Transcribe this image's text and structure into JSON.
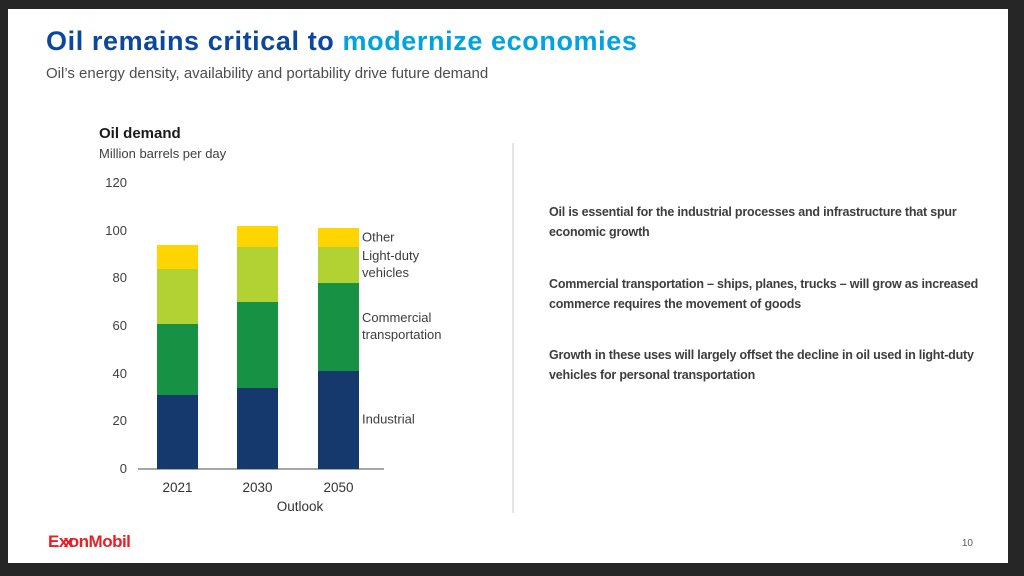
{
  "header": {
    "title_dark": "Oil remains critical to ",
    "title_light": "modernize economies",
    "title_dark_color": "#0c479e",
    "title_light_color": "#00a3e0",
    "subtitle": "Oil’s energy density, availability and portability drive future demand"
  },
  "chart_data": {
    "type": "bar",
    "stacked": true,
    "title": "Oil demand",
    "units_label": "Million barrels per day",
    "xlabel": "Outlook",
    "categories": [
      "2021",
      "2030",
      "2050"
    ],
    "series": [
      {
        "name": "Industrial",
        "color": "#16396d",
        "values": [
          31,
          34,
          41
        ]
      },
      {
        "name": "Commercial transportation",
        "color": "#179144",
        "values": [
          30,
          36,
          37
        ]
      },
      {
        "name": "Light-duty vehicles",
        "color": "#b2d234",
        "values": [
          23,
          23,
          15
        ]
      },
      {
        "name": "Other",
        "color": "#ffd500",
        "values": [
          10,
          9,
          8
        ]
      }
    ],
    "totals": [
      94,
      102,
      101
    ],
    "ylim": [
      0,
      120
    ],
    "yticks": [
      0,
      20,
      40,
      60,
      80,
      100,
      120
    ],
    "grid": false,
    "legend_position": "right-of-bars"
  },
  "key_points": [
    "Oil is essential for the industrial processes and infrastructure that spur economic growth",
    "Commercial transportation – ships, planes, trucks – will grow as increased commerce requires the movement of goods",
    "Growth in these uses will largely offset the decline in oil used in light-duty vehicles for personal transportation"
  ],
  "footer": {
    "brand": "ExxonMobil",
    "brand_parts": [
      "E",
      "xx",
      "onMobil"
    ],
    "brand_color": "#ee1c23",
    "page": "10"
  }
}
